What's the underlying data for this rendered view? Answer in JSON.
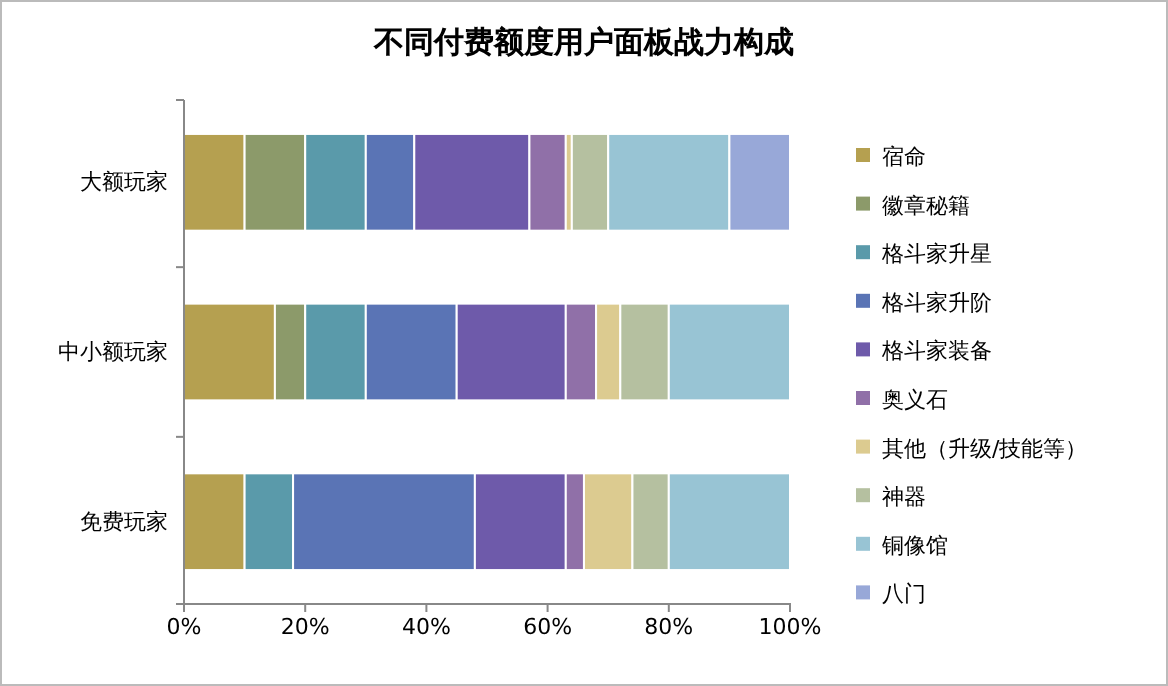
{
  "chart_data": {
    "type": "bar",
    "title": "不同付费额度用户面板战力构成",
    "orientation": "horizontal",
    "stacked": true,
    "categories": [
      "大额玩家",
      "中小额玩家",
      "免费玩家"
    ],
    "series": [
      {
        "name": "宿命",
        "color": "#b5a050",
        "values": [
          10,
          15,
          10
        ]
      },
      {
        "name": "徽章秘籍",
        "color": "#8c9a6a",
        "values": [
          10,
          5,
          0
        ]
      },
      {
        "name": "格斗家升星",
        "color": "#5a9aaa",
        "values": [
          10,
          10,
          8
        ]
      },
      {
        "name": "格斗家升阶",
        "color": "#5a74b5",
        "values": [
          8,
          15,
          30
        ]
      },
      {
        "name": "格斗家装备",
        "color": "#6e5aaa",
        "values": [
          19,
          18,
          15
        ]
      },
      {
        "name": "奥义石",
        "color": "#9070a8",
        "values": [
          6,
          5,
          3
        ]
      },
      {
        "name": "其他（升级/技能等）",
        "color": "#dccb90",
        "values": [
          1,
          4,
          8
        ]
      },
      {
        "name": "神器",
        "color": "#b5c0a0",
        "values": [
          6,
          8,
          6
        ]
      },
      {
        "name": "铜像馆",
        "color": "#98c4d4",
        "values": [
          20,
          20,
          20
        ]
      },
      {
        "name": "八门",
        "color": "#98a8d8",
        "values": [
          10,
          0,
          0
        ]
      }
    ],
    "xlim": [
      0,
      100
    ],
    "xticks": [
      {
        "value": 0,
        "label": "0%"
      },
      {
        "value": 20,
        "label": "20%"
      },
      {
        "value": 40,
        "label": "40%"
      },
      {
        "value": 60,
        "label": "60%"
      },
      {
        "value": 80,
        "label": "80%"
      },
      {
        "value": 100,
        "label": "100%"
      }
    ],
    "legend": "right",
    "grid": false
  }
}
